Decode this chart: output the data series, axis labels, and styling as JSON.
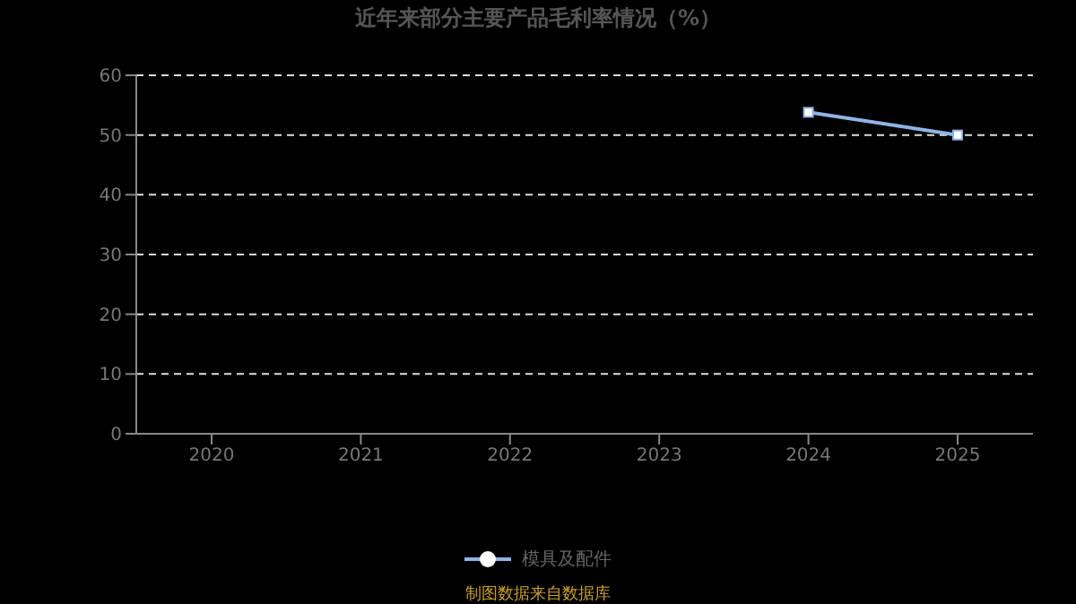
{
  "chart_data": {
    "type": "line",
    "title": "近年来部分主要产品毛利率情况（%）",
    "categories": [
      "2020",
      "2021",
      "2022",
      "2023",
      "2024",
      "2025"
    ],
    "series": [
      {
        "name": "模具及配件",
        "color": "#8fb4e6",
        "values": [
          null,
          null,
          null,
          null,
          53.8,
          50.0
        ]
      }
    ],
    "ylim": [
      0,
      60
    ],
    "yticks": [
      0,
      10,
      20,
      30,
      40,
      50,
      60
    ],
    "grid": "y",
    "legend": "bottom",
    "marker": "square",
    "line_style": "solid",
    "annotations": [
      "制图数据来自数据库"
    ]
  }
}
